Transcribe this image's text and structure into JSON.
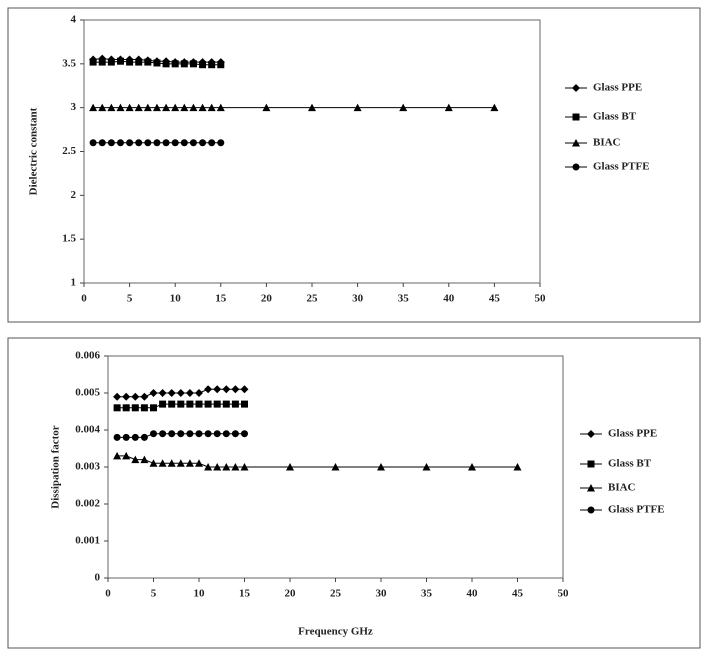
{
  "chart_data": [
    {
      "type": "line",
      "y_label": "Dielectric constant",
      "xlim": [
        0,
        50
      ],
      "xticks": [
        0,
        5,
        10,
        15,
        20,
        25,
        30,
        35,
        40,
        45,
        50
      ],
      "ylim": [
        1,
        4
      ],
      "yticks": [
        1,
        1.5,
        2,
        2.5,
        3,
        3.5,
        4
      ],
      "series": [
        {
          "name": "Glass PPE",
          "color": "#000000",
          "marker": "diamond",
          "x": [
            1,
            2,
            3,
            4,
            5,
            6,
            7,
            8,
            9,
            10,
            11,
            12,
            13,
            14,
            15
          ],
          "values": [
            3.55,
            3.56,
            3.55,
            3.55,
            3.55,
            3.55,
            3.54,
            3.53,
            3.53,
            3.52,
            3.52,
            3.52,
            3.52,
            3.52,
            3.52
          ]
        },
        {
          "name": "Glass BT",
          "color": "#000000",
          "marker": "square",
          "x": [
            1,
            2,
            3,
            4,
            5,
            6,
            7,
            8,
            9,
            10,
            11,
            12,
            13,
            14,
            15
          ],
          "values": [
            3.52,
            3.52,
            3.52,
            3.53,
            3.52,
            3.52,
            3.52,
            3.51,
            3.5,
            3.5,
            3.5,
            3.5,
            3.49,
            3.49,
            3.49
          ]
        },
        {
          "name": "BIAC",
          "color": "#000000",
          "marker": "triangle",
          "x": [
            1,
            2,
            3,
            4,
            5,
            6,
            7,
            8,
            9,
            10,
            11,
            12,
            13,
            14,
            15,
            20,
            25,
            30,
            35,
            40,
            45
          ],
          "values": [
            3,
            3,
            3,
            3,
            3,
            3,
            3,
            3,
            3,
            3,
            3,
            3,
            3,
            3,
            3,
            3,
            3,
            3,
            3,
            3,
            3
          ]
        },
        {
          "name": "Glass PTFE",
          "color": "#000000",
          "marker": "circle",
          "x": [
            1,
            2,
            3,
            4,
            5,
            6,
            7,
            8,
            9,
            10,
            11,
            12,
            13,
            14,
            15
          ],
          "values": [
            2.6,
            2.6,
            2.6,
            2.6,
            2.6,
            2.6,
            2.6,
            2.6,
            2.6,
            2.6,
            2.6,
            2.6,
            2.6,
            2.6,
            2.6
          ]
        }
      ]
    },
    {
      "type": "line",
      "y_label": "Dissipation factor",
      "x_label": "Frequency GHz",
      "xlim": [
        0,
        50
      ],
      "xticks": [
        0,
        5,
        10,
        15,
        20,
        25,
        30,
        35,
        40,
        45,
        50
      ],
      "ylim": [
        0,
        0.006
      ],
      "yticks": [
        0,
        0.001,
        0.002,
        0.003,
        0.004,
        0.005,
        0.006
      ],
      "series": [
        {
          "name": "Glass PPE",
          "color": "#000000",
          "marker": "diamond",
          "x": [
            1,
            2,
            3,
            4,
            5,
            6,
            7,
            8,
            9,
            10,
            11,
            12,
            13,
            14,
            15
          ],
          "values": [
            0.0049,
            0.0049,
            0.0049,
            0.0049,
            0.005,
            0.005,
            0.005,
            0.005,
            0.005,
            0.005,
            0.0051,
            0.0051,
            0.0051,
            0.0051,
            0.0051
          ]
        },
        {
          "name": "Glass BT",
          "color": "#000000",
          "marker": "square",
          "x": [
            1,
            2,
            3,
            4,
            5,
            6,
            7,
            8,
            9,
            10,
            11,
            12,
            13,
            14,
            15
          ],
          "values": [
            0.0046,
            0.0046,
            0.0046,
            0.0046,
            0.0046,
            0.0047,
            0.0047,
            0.0047,
            0.0047,
            0.0047,
            0.0047,
            0.0047,
            0.0047,
            0.0047,
            0.0047
          ]
        },
        {
          "name": "BIAC",
          "color": "#000000",
          "marker": "triangle",
          "x": [
            1,
            2,
            3,
            4,
            5,
            6,
            7,
            8,
            9,
            10,
            11,
            12,
            13,
            14,
            15,
            20,
            25,
            30,
            35,
            40,
            45
          ],
          "values": [
            0.0033,
            0.0033,
            0.0032,
            0.0032,
            0.0031,
            0.0031,
            0.0031,
            0.0031,
            0.0031,
            0.0031,
            0.003,
            0.003,
            0.003,
            0.003,
            0.003,
            0.003,
            0.003,
            0.003,
            0.003,
            0.003,
            0.003
          ]
        },
        {
          "name": "Glass PTFE",
          "color": "#000000",
          "marker": "circle",
          "x": [
            1,
            2,
            3,
            4,
            5,
            6,
            7,
            8,
            9,
            10,
            11,
            12,
            13,
            14,
            15
          ],
          "values": [
            0.0038,
            0.0038,
            0.0038,
            0.0038,
            0.0039,
            0.0039,
            0.0039,
            0.0039,
            0.0039,
            0.0039,
            0.0039,
            0.0039,
            0.0039,
            0.0039,
            0.0039
          ]
        }
      ]
    }
  ]
}
